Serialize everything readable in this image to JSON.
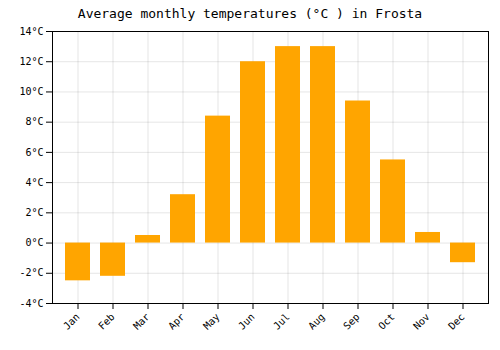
{
  "chart_data": {
    "type": "bar",
    "title": "Average monthly temperatures (°C ) in Frosta",
    "categories": [
      "Jan",
      "Feb",
      "Mar",
      "Apr",
      "May",
      "Jun",
      "Jul",
      "Aug",
      "Sep",
      "Oct",
      "Nov",
      "Dec"
    ],
    "values": [
      -2.5,
      -2.2,
      0.5,
      3.2,
      8.4,
      12.0,
      13.0,
      13.0,
      9.4,
      5.5,
      0.7,
      -1.3
    ],
    "color": "#FFA500",
    "ylim": [
      -4,
      14
    ],
    "yticks": [
      {
        "value": -4,
        "label": "-4°C"
      },
      {
        "value": -2,
        "label": "-2°C"
      },
      {
        "value": 0,
        "label": "0°C"
      },
      {
        "value": 2,
        "label": "2°C"
      },
      {
        "value": 4,
        "label": "4°C"
      },
      {
        "value": 6,
        "label": "6°C"
      },
      {
        "value": 8,
        "label": "8°C"
      },
      {
        "value": 10,
        "label": "10°C"
      },
      {
        "value": 12,
        "label": "12°C"
      },
      {
        "value": 14,
        "label": "14°C"
      }
    ],
    "grid": true
  }
}
